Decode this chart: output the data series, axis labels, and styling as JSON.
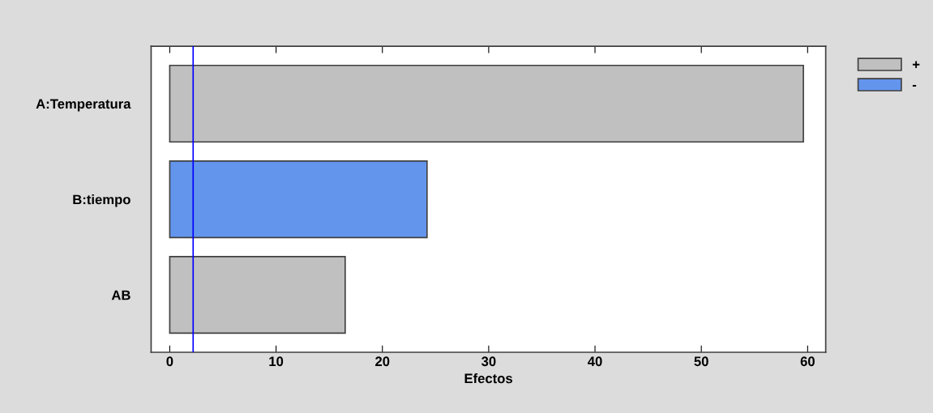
{
  "chart_data": {
    "type": "bar",
    "orientation": "horizontal",
    "stacked": true,
    "xlabel": "Efectos",
    "categories": [
      "A:Temperatura",
      "B:tiempo",
      "AB"
    ],
    "series": [
      {
        "name": "+",
        "color": "#c0c0c0",
        "values": [
          59.6,
          null,
          16.5
        ]
      },
      {
        "name": "-",
        "color": "#6495ed",
        "values": [
          null,
          24.2,
          null
        ]
      }
    ],
    "xlim": [
      -1.75,
      61.7
    ],
    "xticks": [
      0,
      10,
      20,
      30,
      40,
      50,
      60
    ],
    "ref_lines": [
      {
        "axis": "x",
        "value": 2.2,
        "color": "#0000ff"
      }
    ],
    "grid": false,
    "legend": "top right"
  }
}
